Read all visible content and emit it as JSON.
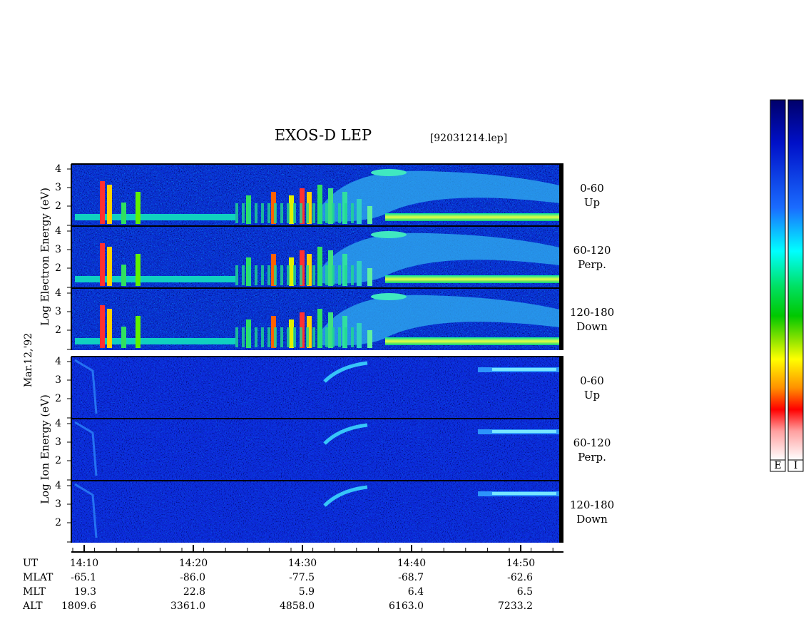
{
  "header": {
    "title": "EXOS-D LEP",
    "file": "[92031214.lep]"
  },
  "side_labels": {
    "electron": "Log  Electron  Energy (eV)",
    "date": "Mar.12,'92",
    "ion": "Log   Ion  Energy (eV)"
  },
  "panels": [
    {
      "species": "electron",
      "label": [
        "0-60",
        "Up"
      ],
      "yticks": [
        2,
        3,
        4
      ]
    },
    {
      "species": "electron",
      "label": [
        "60-120",
        "Perp."
      ],
      "yticks": [
        2,
        3,
        4
      ]
    },
    {
      "species": "electron",
      "label": [
        "120-180",
        "Down"
      ],
      "yticks": [
        2,
        3,
        4
      ]
    },
    {
      "species": "ion",
      "label": [
        "0-60",
        "Up"
      ],
      "yticks": [
        2,
        3,
        4
      ]
    },
    {
      "species": "ion",
      "label": [
        "60-120",
        "Perp."
      ],
      "yticks": [
        2,
        3,
        4
      ]
    },
    {
      "species": "ion",
      "label": [
        "120-180",
        "Down"
      ],
      "yticks": [
        2,
        3,
        4
      ]
    }
  ],
  "ephemeris": {
    "row_labels": [
      "UT",
      "MLAT",
      "MLT",
      "ALT"
    ],
    "columns": [
      [
        "14:10",
        "-65.1",
        "19.3",
        "1809.6"
      ],
      [
        "14:20",
        "-86.0",
        "22.8",
        "3361.0"
      ],
      [
        "14:30",
        "-77.5",
        "5.9",
        "4858.0"
      ],
      [
        "14:40",
        "-68.7",
        "6.4",
        "6163.0"
      ],
      [
        "14:50",
        "-62.6",
        "6.5",
        "7233.2"
      ]
    ]
  },
  "colorbar": {
    "labels": [
      "E",
      "I"
    ]
  }
}
